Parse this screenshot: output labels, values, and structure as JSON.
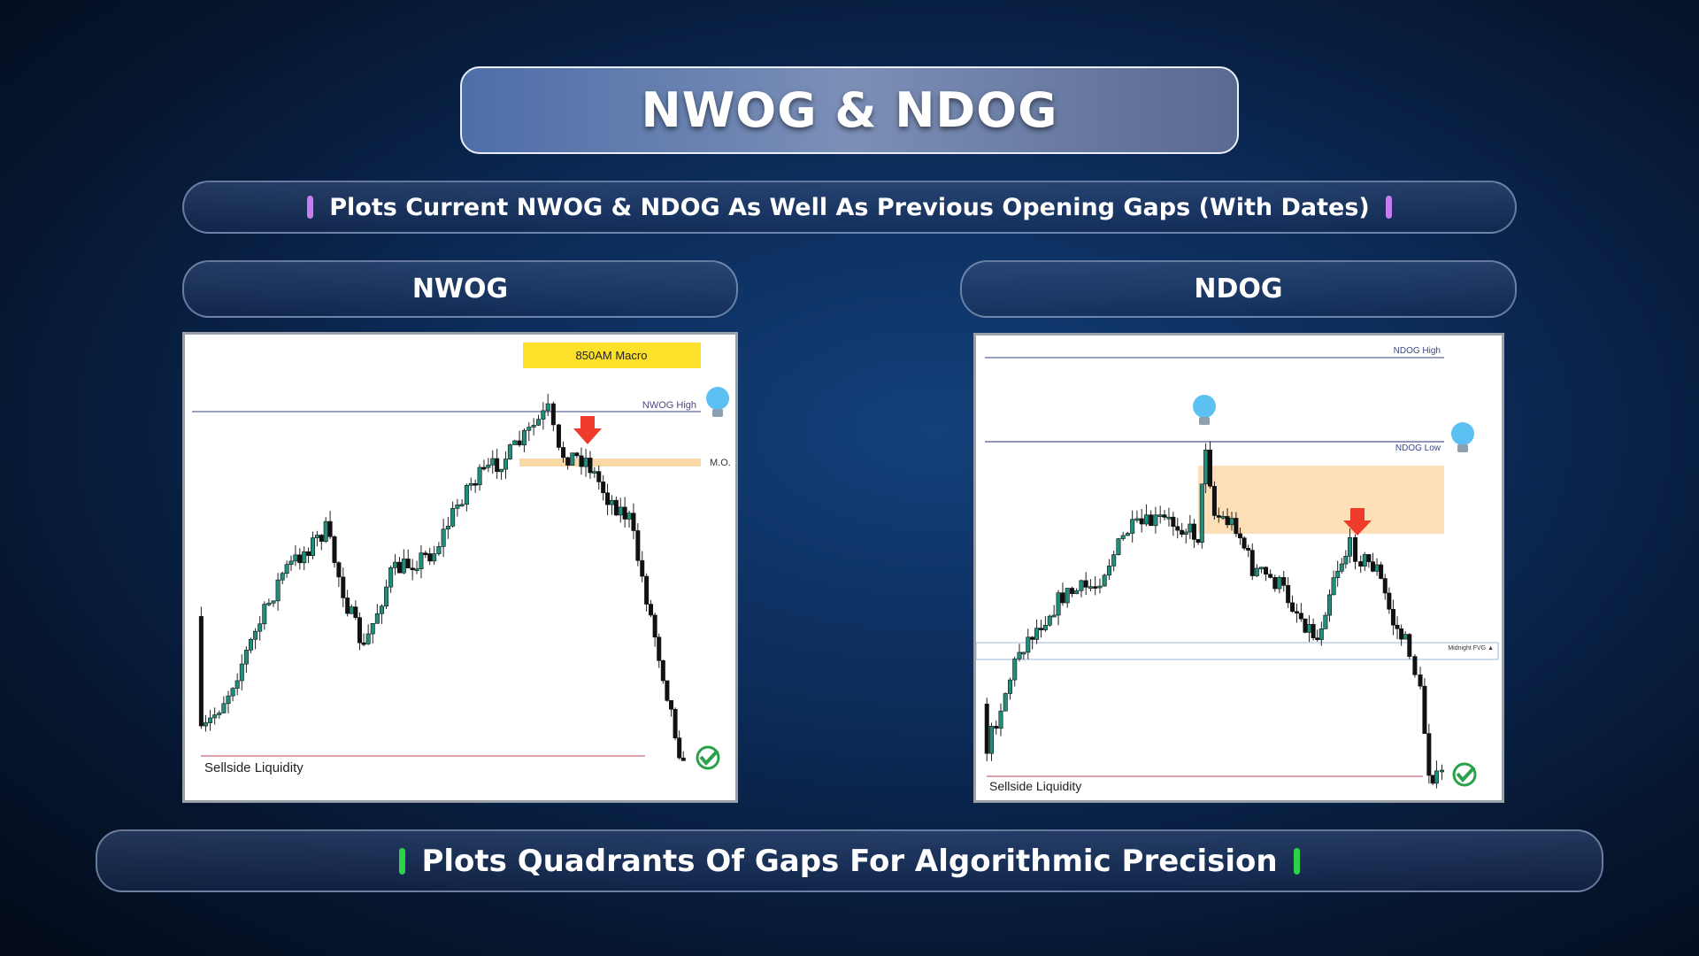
{
  "header": {
    "title": "NWOG & NDOG",
    "subtitle": "Plots Current NWOG & NDOG As Well As Previous Opening Gaps (With Dates)"
  },
  "panels": [
    {
      "heading": "NWOG",
      "labels": {
        "macro": "850AM Macro",
        "high": "NWOG High",
        "mo": "M.O.",
        "liquidity": "Sellside Liquidity"
      }
    },
    {
      "heading": "NDOG",
      "labels": {
        "high": "NDOG High",
        "low": "NDOG Low",
        "fvg": "Midnight FVG ▲",
        "liquidity": "Sellside Liquidity"
      }
    }
  ],
  "footer": {
    "text": "Plots Quadrants Of Gaps For Algorithmic Precision"
  }
}
